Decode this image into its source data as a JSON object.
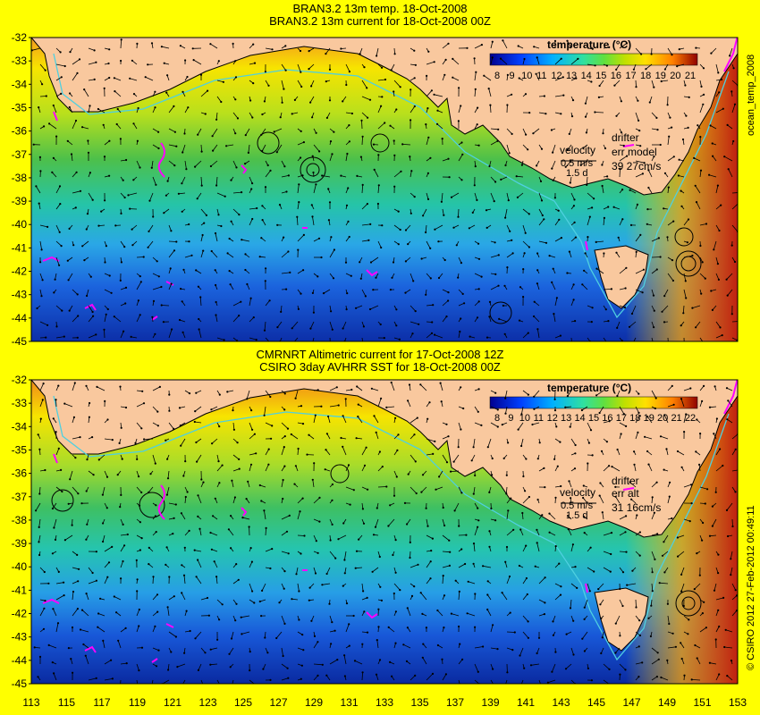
{
  "top_panel": {
    "title_line1": "BRAN3.2 13m temp. 18-Oct-2008",
    "title_line2": "BRAN3.2 13m current for 18-Oct-2008 00Z",
    "colorbar_title": "temperature (°C)",
    "colorbar_ticks": [
      "8",
      "9",
      "10",
      "11",
      "12",
      "13",
      "14",
      "15",
      "16",
      "17",
      "18",
      "19",
      "20",
      "21"
    ],
    "velocity_label": "velocity",
    "velocity_scale": "0.5 m/s",
    "velocity_sub": "1.5 d",
    "drifter_label": "drifter",
    "err_label": "err model",
    "err_value": "39 27cm/s",
    "side_label": "ocean_temp_2008"
  },
  "bottom_panel": {
    "title_line1": "CMRNRT Altimetric current for 17-Oct-2008 12Z",
    "title_line2": "CSIRO 3day AVHRR SST for 18-Oct-2008 00Z",
    "colorbar_title": "temperature (°C)",
    "colorbar_ticks": [
      "8",
      "9",
      "10",
      "11",
      "12",
      "13",
      "14",
      "15",
      "16",
      "17",
      "18",
      "19",
      "20",
      "21",
      "22"
    ],
    "velocity_label": "velocity",
    "velocity_scale": "0.5 m/s",
    "velocity_sub": "1.5 d",
    "drifter_label": "drifter",
    "err_label": "err alt",
    "err_value": "31 16cm/s",
    "side_label": "© CSIRO 2012   27-Feb-2012 00:49:11"
  },
  "lat_ticks": [
    "-32",
    "-33",
    "-34",
    "-35",
    "-36",
    "-37",
    "-38",
    "-39",
    "-40",
    "-41",
    "-42",
    "-43",
    "-44",
    "-45"
  ],
  "lon_ticks": [
    "113",
    "115",
    "117",
    "119",
    "121",
    "123",
    "125",
    "127",
    "129",
    "131",
    "133",
    "135",
    "137",
    "139",
    "141",
    "143",
    "145",
    "147",
    "149",
    "151",
    "153"
  ],
  "map_extent": {
    "lon": [
      113,
      153
    ],
    "lat": [
      -45,
      -32
    ]
  },
  "colors": {
    "land": "#f9c89e",
    "background": "#ffff00",
    "isobath": "#4fd0e0",
    "drifter": "#ff00ff"
  }
}
